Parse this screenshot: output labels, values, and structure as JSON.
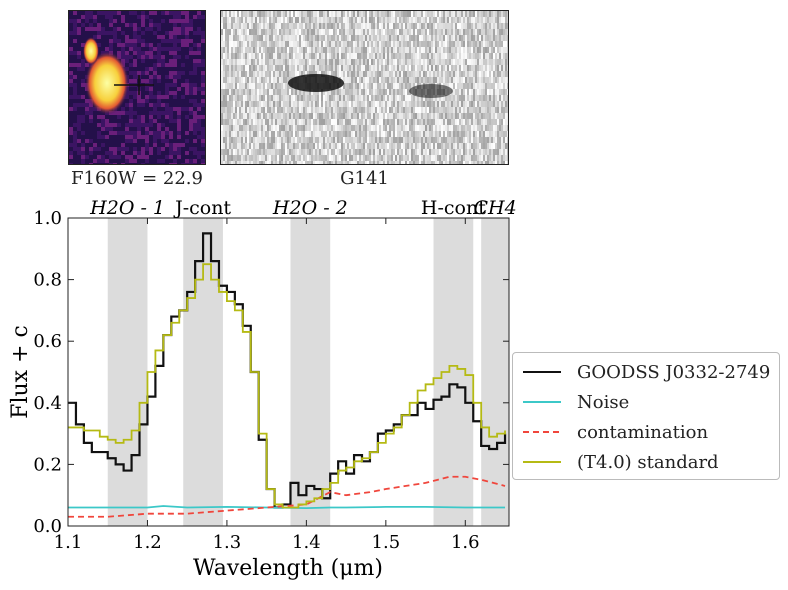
{
  "thumbnail": {
    "caption": "F160W = 22.9"
  },
  "spectrum2d": {
    "caption": "G141"
  },
  "chart_data": {
    "type": "line",
    "xlabel": "Wavelength (μm)",
    "ylabel": "Flux + c",
    "xlim": [
      1.1,
      1.655
    ],
    "ylim": [
      0.0,
      1.0
    ],
    "xticks": [
      "1.1",
      "1.2",
      "1.3",
      "1.4",
      "1.5",
      "1.6"
    ],
    "yticks": [
      "0.0",
      "0.2",
      "0.4",
      "0.6",
      "0.8",
      "1.0"
    ],
    "bands": [
      {
        "label": "H2O - 1",
        "x0": 1.15,
        "x1": 1.2
      },
      {
        "label": "J-cont",
        "x0": 1.245,
        "x1": 1.295
      },
      {
        "label": "H2O - 2",
        "x0": 1.38,
        "x1": 1.43
      },
      {
        "label": "H-cont",
        "x0": 1.56,
        "x1": 1.61
      },
      {
        "label": "CH4",
        "x0": 1.62,
        "x1": 1.655
      }
    ],
    "band_color": "#dcdcdc",
    "legend_position": "right",
    "series": [
      {
        "name": "GOODSS J0332-2749",
        "color": "#111111",
        "style": "solid",
        "x": [
          1.1,
          1.11,
          1.12,
          1.13,
          1.14,
          1.15,
          1.16,
          1.17,
          1.18,
          1.19,
          1.2,
          1.21,
          1.22,
          1.23,
          1.24,
          1.25,
          1.26,
          1.27,
          1.28,
          1.29,
          1.3,
          1.31,
          1.32,
          1.33,
          1.34,
          1.35,
          1.36,
          1.37,
          1.38,
          1.39,
          1.4,
          1.41,
          1.42,
          1.43,
          1.44,
          1.45,
          1.46,
          1.47,
          1.48,
          1.49,
          1.5,
          1.51,
          1.52,
          1.53,
          1.54,
          1.55,
          1.56,
          1.57,
          1.58,
          1.59,
          1.6,
          1.61,
          1.62,
          1.63,
          1.64,
          1.65
        ],
        "y": [
          0.4,
          0.33,
          0.27,
          0.24,
          0.24,
          0.22,
          0.2,
          0.18,
          0.23,
          0.33,
          0.42,
          0.52,
          0.62,
          0.68,
          0.7,
          0.76,
          0.86,
          0.95,
          0.86,
          0.78,
          0.76,
          0.72,
          0.65,
          0.5,
          0.28,
          0.12,
          0.06,
          0.07,
          0.14,
          0.1,
          0.13,
          0.12,
          0.09,
          0.17,
          0.21,
          0.17,
          0.23,
          0.21,
          0.24,
          0.3,
          0.31,
          0.33,
          0.36,
          0.36,
          0.4,
          0.38,
          0.41,
          0.42,
          0.46,
          0.45,
          0.4,
          0.34,
          0.26,
          0.25,
          0.27,
          0.3
        ]
      },
      {
        "name": "Noise",
        "color": "#3cc8c8",
        "style": "solid",
        "x": [
          1.1,
          1.15,
          1.2,
          1.22,
          1.25,
          1.3,
          1.35,
          1.4,
          1.43,
          1.45,
          1.5,
          1.55,
          1.6,
          1.65
        ],
        "y": [
          0.06,
          0.06,
          0.06,
          0.065,
          0.06,
          0.062,
          0.06,
          0.058,
          0.06,
          0.06,
          0.062,
          0.062,
          0.06,
          0.06
        ]
      },
      {
        "name": "contamination",
        "color": "#f0463c",
        "style": "dashed",
        "x": [
          1.1,
          1.15,
          1.2,
          1.25,
          1.3,
          1.35,
          1.4,
          1.43,
          1.45,
          1.48,
          1.5,
          1.55,
          1.58,
          1.6,
          1.62,
          1.65
        ],
        "y": [
          0.03,
          0.03,
          0.04,
          0.04,
          0.05,
          0.06,
          0.07,
          0.11,
          0.1,
          0.11,
          0.12,
          0.14,
          0.16,
          0.16,
          0.15,
          0.13
        ]
      },
      {
        "name": "(T4.0) standard",
        "color": "#b5ba14",
        "style": "solid",
        "x": [
          1.1,
          1.11,
          1.12,
          1.13,
          1.14,
          1.15,
          1.16,
          1.17,
          1.18,
          1.19,
          1.2,
          1.21,
          1.22,
          1.23,
          1.24,
          1.25,
          1.26,
          1.27,
          1.28,
          1.29,
          1.3,
          1.31,
          1.32,
          1.33,
          1.34,
          1.35,
          1.36,
          1.37,
          1.38,
          1.39,
          1.4,
          1.41,
          1.42,
          1.43,
          1.44,
          1.45,
          1.46,
          1.47,
          1.48,
          1.49,
          1.5,
          1.51,
          1.52,
          1.53,
          1.54,
          1.55,
          1.56,
          1.57,
          1.58,
          1.59,
          1.6,
          1.61,
          1.62,
          1.63,
          1.64,
          1.65
        ],
        "y": [
          0.32,
          0.32,
          0.31,
          0.31,
          0.29,
          0.28,
          0.27,
          0.28,
          0.31,
          0.4,
          0.5,
          0.57,
          0.62,
          0.66,
          0.7,
          0.74,
          0.8,
          0.85,
          0.8,
          0.76,
          0.73,
          0.7,
          0.63,
          0.5,
          0.3,
          0.12,
          0.07,
          0.06,
          0.06,
          0.07,
          0.08,
          0.09,
          0.12,
          0.14,
          0.18,
          0.19,
          0.21,
          0.22,
          0.24,
          0.27,
          0.3,
          0.32,
          0.36,
          0.4,
          0.44,
          0.46,
          0.48,
          0.5,
          0.52,
          0.51,
          0.49,
          0.4,
          0.32,
          0.29,
          0.3,
          0.31
        ]
      }
    ]
  }
}
